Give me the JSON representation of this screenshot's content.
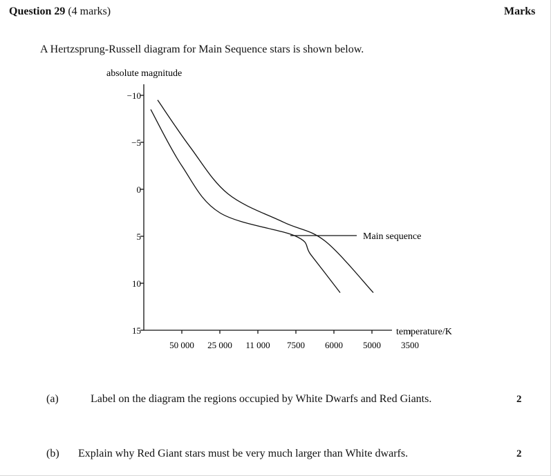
{
  "question": {
    "title": "Question 29",
    "marks_text": "(4 marks)",
    "marks_heading": "Marks",
    "intro": "A Hertzsprung-Russell diagram for Main Sequence stars is shown below."
  },
  "chart_data": {
    "type": "line",
    "title": "",
    "ylabel": "absolute magnitude",
    "xlabel": "temperature/K",
    "y_ticks": [
      "−10",
      "−5",
      "0",
      "5",
      "10",
      "15"
    ],
    "x_ticks": [
      "50 000",
      "25 000",
      "11 000",
      "7500",
      "6000",
      "5000",
      "3500"
    ],
    "ylim": [
      -10,
      15
    ],
    "y_inverted": true,
    "annotation": "Main sequence",
    "series": [
      {
        "x": [
          "50 000",
          "25 000",
          "11 000",
          "7500",
          "6000",
          "5000"
        ],
        "y": [
          -8.5,
          -2.5,
          2.5,
          5,
          7,
          11
        ]
      },
      {
        "x": [
          "50 000",
          "25 000",
          "11 000",
          "7500",
          "6000",
          "3500"
        ],
        "y": [
          -9.5,
          -4.5,
          0.5,
          3.5,
          5.5,
          11
        ]
      }
    ]
  },
  "parts": [
    {
      "label": "(a)",
      "text": "Label on the diagram the regions occupied by White Dwarfs and Red Giants.",
      "marks": "2"
    },
    {
      "label": "(b)",
      "text": "Explain why Red Giant stars must be very much larger than White dwarfs.",
      "marks": "2"
    }
  ]
}
